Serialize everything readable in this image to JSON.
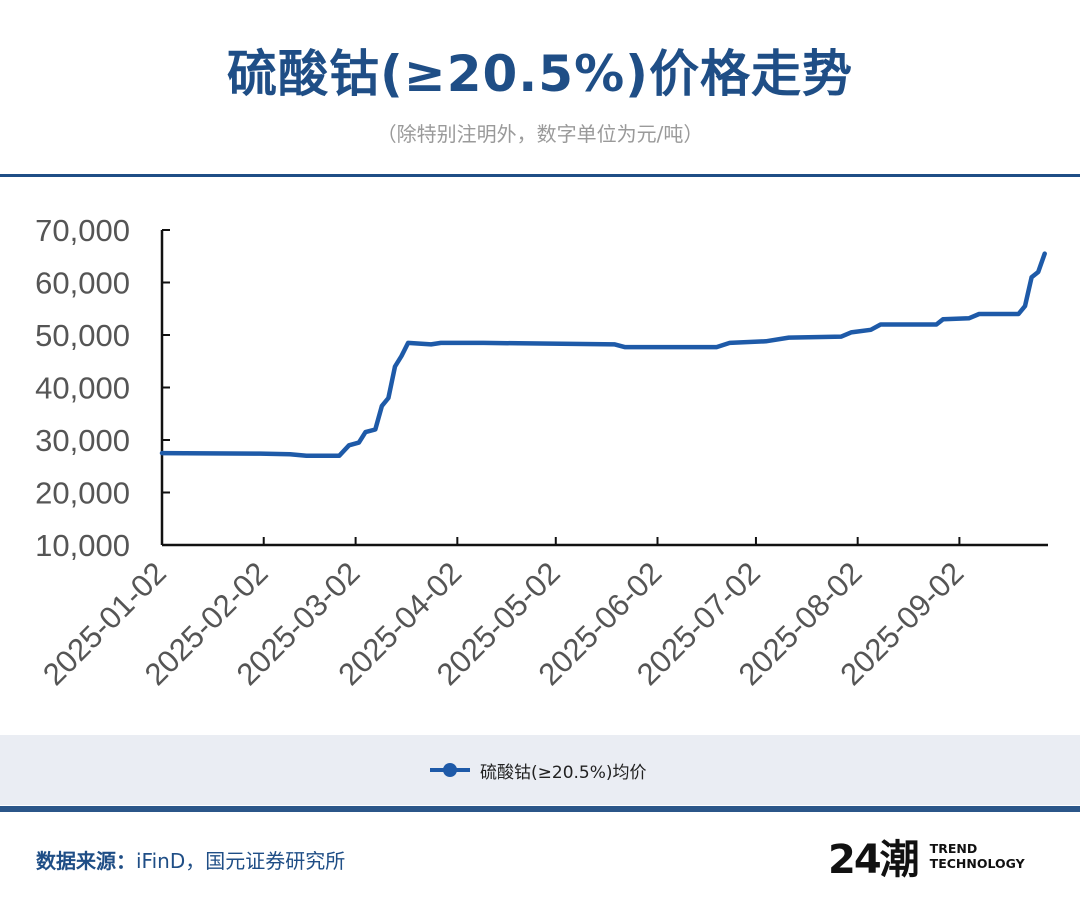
{
  "header": {
    "title": "硫酸钴(≥20.5%)价格走势",
    "subtitle": "（除特别注明外，数字单位为元/吨）"
  },
  "footer": {
    "source_label": "数据来源：",
    "source_value": "iFinD，国元证券研究所",
    "logo_mark": "24潮",
    "logo_line1": "TREND",
    "logo_line2": "TECHNOLOGY"
  },
  "colors": {
    "title": "#1f4e86",
    "series": "#1e5aa8",
    "axis_text": "#555555",
    "rule": "#1f4e86",
    "legend_band": "#eaedf3"
  },
  "chart_data": {
    "type": "line",
    "title": "",
    "xlabel": "",
    "ylabel": "",
    "ylim": [
      10000,
      70000
    ],
    "yticks": [
      10000,
      20000,
      30000,
      40000,
      50000,
      60000,
      70000
    ],
    "ytick_labels": [
      "10,000",
      "20,000",
      "30,000",
      "40,000",
      "50,000",
      "60,000",
      "70,000"
    ],
    "xlim": [
      "2025-01-02",
      "2025-09-29"
    ],
    "xticks": [
      "2025-01-02",
      "2025-02-02",
      "2025-03-02",
      "2025-04-02",
      "2025-05-02",
      "2025-06-02",
      "2025-07-02",
      "2025-08-02",
      "2025-09-02"
    ],
    "grid": false,
    "legend_position": "bottom",
    "series": [
      {
        "name": "硫酸钴(≥20.5%)均价",
        "points": [
          [
            "2025-01-02",
            27500
          ],
          [
            "2025-02-01",
            27400
          ],
          [
            "2025-02-10",
            27300
          ],
          [
            "2025-02-15",
            27000
          ],
          [
            "2025-02-25",
            27000
          ],
          [
            "2025-02-28",
            29000
          ],
          [
            "2025-03-03",
            29500
          ],
          [
            "2025-03-05",
            31500
          ],
          [
            "2025-03-08",
            32000
          ],
          [
            "2025-03-10",
            36500
          ],
          [
            "2025-03-12",
            38000
          ],
          [
            "2025-03-14",
            44000
          ],
          [
            "2025-03-16",
            46000
          ],
          [
            "2025-03-18",
            48500
          ],
          [
            "2025-03-25",
            48200
          ],
          [
            "2025-03-28",
            48500
          ],
          [
            "2025-04-10",
            48500
          ],
          [
            "2025-05-20",
            48200
          ],
          [
            "2025-05-23",
            47700
          ],
          [
            "2025-06-20",
            47700
          ],
          [
            "2025-06-24",
            48500
          ],
          [
            "2025-07-05",
            48800
          ],
          [
            "2025-07-12",
            49500
          ],
          [
            "2025-07-28",
            49700
          ],
          [
            "2025-07-31",
            50500
          ],
          [
            "2025-08-06",
            51000
          ],
          [
            "2025-08-09",
            52000
          ],
          [
            "2025-08-26",
            52000
          ],
          [
            "2025-08-28",
            53000
          ],
          [
            "2025-09-05",
            53200
          ],
          [
            "2025-09-08",
            54000
          ],
          [
            "2025-09-20",
            54000
          ],
          [
            "2025-09-22",
            55500
          ],
          [
            "2025-09-24",
            61000
          ],
          [
            "2025-09-26",
            62000
          ],
          [
            "2025-09-28",
            65500
          ]
        ]
      }
    ]
  }
}
